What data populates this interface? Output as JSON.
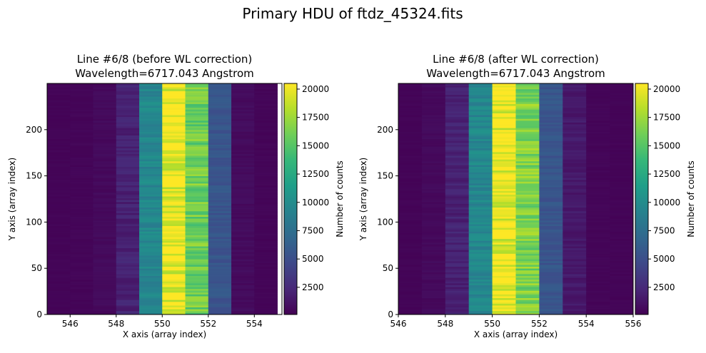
{
  "suptitle": "Primary HDU of ftdz_45324.fits",
  "colors": {
    "viridis": [
      "#440154",
      "#482878",
      "#3e4989",
      "#31688e",
      "#26828e",
      "#1f9e89",
      "#35b779",
      "#6ece58",
      "#b5de2b",
      "#fde725"
    ]
  },
  "chart_data": [
    {
      "type": "heatmap",
      "title": "Line #6/8 (before WL correction)",
      "subtitle": "Wavelength=6717.043 Angstrom",
      "xlabel": "X axis (array index)",
      "ylabel": "Y axis (array index)",
      "xlim": [
        545,
        555.2
      ],
      "ylim": [
        0,
        250
      ],
      "xticks": [
        546,
        548,
        550,
        552,
        554
      ],
      "yticks": [
        0,
        50,
        100,
        150,
        200
      ],
      "columns": [
        {
          "x": 545.5,
          "counts": 300
        },
        {
          "x": 546.5,
          "counts": 350
        },
        {
          "x": 547.5,
          "counts": 600
        },
        {
          "x": 548.5,
          "counts": 2000
        },
        {
          "x": 549.5,
          "counts": 9500
        },
        {
          "x": 550.5,
          "counts": 20000
        },
        {
          "x": 551.5,
          "counts": 16000
        },
        {
          "x": 552.5,
          "counts": 5500
        },
        {
          "x": 553.5,
          "counts": 700
        },
        {
          "x": 554.5,
          "counts": 350
        }
      ],
      "colorbar": {
        "label": "Number of counts",
        "range": [
          100,
          20500
        ],
        "ticks": [
          2500,
          5000,
          7500,
          10000,
          12500,
          15000,
          17500,
          20000
        ]
      }
    },
    {
      "type": "heatmap",
      "title": "Line #6/8 (after WL correction)",
      "subtitle": "Wavelength=6717.043 Angstrom",
      "xlabel": "X axis (array index)",
      "ylabel": "Y axis (array index)",
      "xlim": [
        546,
        556
      ],
      "ylim": [
        0,
        250
      ],
      "xticks": [
        546,
        548,
        550,
        552,
        554,
        556
      ],
      "yticks": [
        0,
        50,
        100,
        150,
        200
      ],
      "columns": [
        {
          "x": 546.5,
          "counts": 300
        },
        {
          "x": 547.5,
          "counts": 600
        },
        {
          "x": 548.5,
          "counts": 2000
        },
        {
          "x": 549.5,
          "counts": 9500
        },
        {
          "x": 550.5,
          "counts": 20000
        },
        {
          "x": 551.5,
          "counts": 16500
        },
        {
          "x": 552.5,
          "counts": 5500
        },
        {
          "x": 553.5,
          "counts": 1500
        },
        {
          "x": 554.5,
          "counts": 350
        },
        {
          "x": 555.5,
          "counts": 300
        }
      ],
      "colorbar": {
        "label": "Number of counts",
        "range": [
          100,
          20500
        ],
        "ticks": [
          2500,
          5000,
          7500,
          10000,
          12500,
          15000,
          17500,
          20000
        ]
      }
    }
  ]
}
